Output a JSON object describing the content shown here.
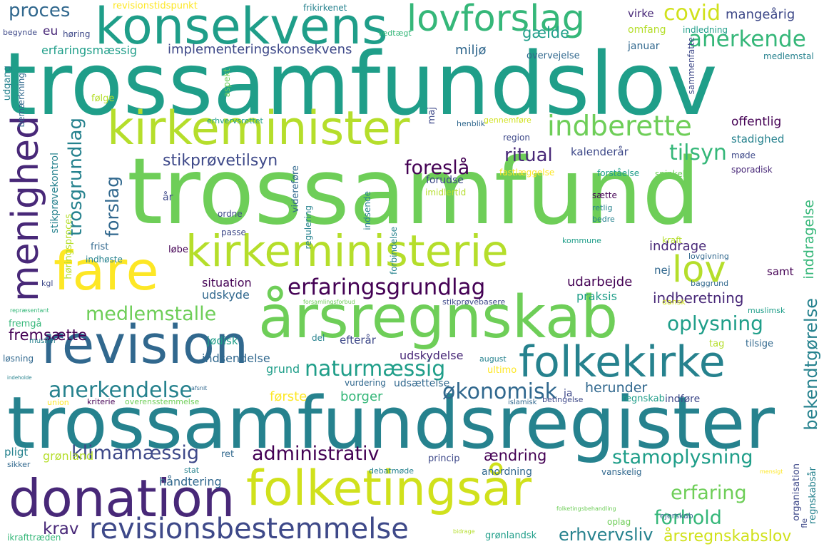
{
  "palette": [
    "#440154",
    "#482878",
    "#3e4989",
    "#31688e",
    "#26828e",
    "#1f9e89",
    "#35b779",
    "#6ece58",
    "#b5de2b",
    "#fde725"
  ],
  "words": [
    {
      "text": "trossamfundslov",
      "color": "#1f9e89"
    },
    {
      "text": "trossamfund",
      "color": "#6ece58"
    },
    {
      "text": "trossamfundsregister",
      "color": "#26828e"
    },
    {
      "text": "konsekvens",
      "color": "#1f9e89"
    },
    {
      "text": "lovforslag",
      "color": "#35b779"
    },
    {
      "text": "kirkeminister",
      "color": "#b5de2b"
    },
    {
      "text": "kirkeministerie",
      "color": "#b5de2b"
    },
    {
      "text": "fare",
      "color": "#fde725"
    },
    {
      "text": "årsregnskab",
      "color": "#6ece58"
    },
    {
      "text": "revision",
      "color": "#31688e"
    },
    {
      "text": "folkekirke",
      "color": "#26828e"
    },
    {
      "text": "folketingsår",
      "color": "#d0e11c"
    },
    {
      "text": "donation",
      "color": "#482878"
    },
    {
      "text": "revisionsbestemmelse",
      "color": "#3e4989"
    },
    {
      "text": "menighed",
      "color": "#482878"
    },
    {
      "text": "indberette",
      "color": "#6ece58"
    },
    {
      "text": "lov",
      "color": "#b5de2b"
    },
    {
      "text": "erfaringsgrundlag",
      "color": "#440154"
    },
    {
      "text": "medlemstalle",
      "color": "#6ece58"
    },
    {
      "text": "anerkendelse",
      "color": "#26828e"
    },
    {
      "text": "klimamæssig",
      "color": "#3e4989"
    },
    {
      "text": "administrativ",
      "color": "#440154"
    },
    {
      "text": "stamoplysning",
      "color": "#1f9e89"
    },
    {
      "text": "naturmæssig",
      "color": "#1f9e89"
    },
    {
      "text": "økonomisk",
      "color": "#31688e"
    },
    {
      "text": "oplysning",
      "color": "#1f9e89"
    },
    {
      "text": "erfaring",
      "color": "#6ece58"
    },
    {
      "text": "forhold",
      "color": "#35b779"
    },
    {
      "text": "erhvervsliv",
      "color": "#26828e"
    },
    {
      "text": "årsregnskabslov",
      "color": "#d0e11c"
    },
    {
      "text": "covid",
      "color": "#d0e11c"
    },
    {
      "text": "anerkende",
      "color": "#35b779"
    },
    {
      "text": "tilsyn",
      "color": "#35b779"
    },
    {
      "text": "foreslå",
      "color": "#440154"
    },
    {
      "text": "ritual",
      "color": "#482878"
    },
    {
      "text": "stikprøvetilsyn",
      "color": "#3e4989"
    },
    {
      "text": "trosgrundlag",
      "color": "#26828e"
    },
    {
      "text": "forslag",
      "color": "#31688e"
    },
    {
      "text": "proces",
      "color": "#31688e"
    },
    {
      "text": "implementeringskonsekvens",
      "color": "#3e4989"
    },
    {
      "text": "erfaringsmæssig",
      "color": "#1f9e89"
    },
    {
      "text": "gælde",
      "color": "#1f9e89"
    },
    {
      "text": "miljø",
      "color": "#31688e"
    },
    {
      "text": "mangeårig",
      "color": "#3e4989"
    },
    {
      "text": "fremsætte",
      "color": "#440154"
    },
    {
      "text": "indberetning",
      "color": "#482878"
    },
    {
      "text": "bekendtgørelse",
      "color": "#26828e"
    },
    {
      "text": "inddragelse",
      "color": "#35b779"
    },
    {
      "text": "offentlig",
      "color": "#440154"
    },
    {
      "text": "krav",
      "color": "#482878"
    },
    {
      "text": "ændring",
      "color": "#440154"
    },
    {
      "text": "herunder",
      "color": "#31688e"
    },
    {
      "text": "inddrage",
      "color": "#482878"
    },
    {
      "text": "udarbejde",
      "color": "#440154"
    },
    {
      "text": "eu",
      "color": "#482878"
    },
    {
      "text": "grønland",
      "color": "#b5de2b"
    },
    {
      "text": "håndtering",
      "color": "#31688e"
    },
    {
      "text": "første",
      "color": "#fde725"
    },
    {
      "text": "borger",
      "color": "#35b779"
    },
    {
      "text": "udskydelse",
      "color": "#482878"
    },
    {
      "text": "grund",
      "color": "#1f9e89"
    },
    {
      "text": "indsendelse",
      "color": "#31688e"
    },
    {
      "text": "jødisk",
      "color": "#1f9e89"
    },
    {
      "text": "efterår",
      "color": "#3e4989"
    },
    {
      "text": "udsættelse",
      "color": "#31688e"
    },
    {
      "text": "situation",
      "color": "#440154"
    },
    {
      "text": "udskyde",
      "color": "#31688e"
    },
    {
      "text": "praksis",
      "color": "#1f9e89"
    },
    {
      "text": "samt",
      "color": "#440154"
    },
    {
      "text": "nej",
      "color": "#31688e"
    },
    {
      "text": "kalenderår",
      "color": "#3e4989"
    },
    {
      "text": "stadighed",
      "color": "#26828e"
    },
    {
      "text": "virke",
      "color": "#482878"
    },
    {
      "text": "omfang",
      "color": "#b5de2b"
    },
    {
      "text": "januar",
      "color": "#31688e"
    },
    {
      "text": "overvejelse",
      "color": "#31688e"
    },
    {
      "text": "indledning",
      "color": "#1f9e89"
    },
    {
      "text": "medlemstal",
      "color": "#26828e"
    },
    {
      "text": "sammenfatte",
      "color": "#3e4989"
    },
    {
      "text": "frikirkenet",
      "color": "#26828e"
    },
    {
      "text": "revisionstidspunkt",
      "color": "#fde725"
    },
    {
      "text": "vedtægt",
      "color": "#35b779"
    },
    {
      "text": "begynde",
      "color": "#3e4989"
    },
    {
      "text": "høring",
      "color": "#3e4989"
    },
    {
      "text": "udgang",
      "color": "#26828e"
    },
    {
      "text": "bemærkning",
      "color": "#31688e"
    },
    {
      "text": "aspekt",
      "color": "#6ece58"
    },
    {
      "text": "følge",
      "color": "#b5de2b"
    },
    {
      "text": "erhvervsrettet",
      "color": "#1f9e89"
    },
    {
      "text": "maj",
      "color": "#3e4989"
    },
    {
      "text": "henblik",
      "color": "#31688e"
    },
    {
      "text": "gennemføre",
      "color": "#d0e11c"
    },
    {
      "text": "region",
      "color": "#3e4989"
    },
    {
      "text": "forudse",
      "color": "#3e4989"
    },
    {
      "text": "imidlertid",
      "color": "#b5de2b"
    },
    {
      "text": "fastlæggelse",
      "color": "#fde725"
    },
    {
      "text": "forståelse",
      "color": "#1f9e89"
    },
    {
      "text": "spinkel",
      "color": "#6ece58"
    },
    {
      "text": "sporadisk",
      "color": "#482878"
    },
    {
      "text": "møde",
      "color": "#3e4989"
    },
    {
      "text": "stikprøvekontrol",
      "color": "#26828e"
    },
    {
      "text": "høringsproces",
      "color": "#b5de2b"
    },
    {
      "text": "år",
      "color": "#3e4989"
    },
    {
      "text": "ordne",
      "color": "#3e4989"
    },
    {
      "text": "passe",
      "color": "#3e4989"
    },
    {
      "text": "videreføre",
      "color": "#31688e"
    },
    {
      "text": "regulering",
      "color": "#26828e"
    },
    {
      "text": "indsende",
      "color": "#26828e"
    },
    {
      "text": "sætte",
      "color": "#440154"
    },
    {
      "text": "retlig",
      "color": "#26828e"
    },
    {
      "text": "bedre",
      "color": "#26828e"
    },
    {
      "text": "frist",
      "color": "#31688e"
    },
    {
      "text": "løbe",
      "color": "#440154"
    },
    {
      "text": "indhøste",
      "color": "#26828e"
    },
    {
      "text": "kommune",
      "color": "#1f9e89"
    },
    {
      "text": "kraft",
      "color": "#b5de2b"
    },
    {
      "text": "lovgivning",
      "color": "#31688e"
    },
    {
      "text": "baggrund",
      "color": "#31688e"
    },
    {
      "text": "dansk",
      "color": "#d0e11c"
    },
    {
      "text": "stikprøvebasere",
      "color": "#3e4989"
    },
    {
      "text": "muslimsk",
      "color": "#1f9e89"
    },
    {
      "text": "kgl",
      "color": "#3e4989"
    },
    {
      "text": "fremgå",
      "color": "#35b779"
    },
    {
      "text": "muslim",
      "color": "#26828e"
    },
    {
      "text": "løsning",
      "color": "#31688e"
    },
    {
      "text": "del",
      "color": "#26828e"
    },
    {
      "text": "tag",
      "color": "#b5de2b"
    },
    {
      "text": "tilsige",
      "color": "#31688e"
    },
    {
      "text": "august",
      "color": "#26828e"
    },
    {
      "text": "ultimo",
      "color": "#fde725"
    },
    {
      "text": "vurdering",
      "color": "#31688e"
    },
    {
      "text": "kriterie",
      "color": "#440154"
    },
    {
      "text": "overensstemmelse",
      "color": "#6ece58"
    },
    {
      "text": "union",
      "color": "#fde725"
    },
    {
      "text": "betingelse",
      "color": "#3e4989"
    },
    {
      "text": "islamisk",
      "color": "#31688e"
    },
    {
      "text": "ja",
      "color": "#3e4989"
    },
    {
      "text": "regnskab",
      "color": "#1f9e89"
    },
    {
      "text": "indføre",
      "color": "#3e4989"
    },
    {
      "text": "pligt",
      "color": "#26828e"
    },
    {
      "text": "sikker",
      "color": "#31688e"
    },
    {
      "text": "ret",
      "color": "#31688e"
    },
    {
      "text": "princip",
      "color": "#3e4989"
    },
    {
      "text": "debatmøde",
      "color": "#26828e"
    },
    {
      "text": "stat",
      "color": "#26828e"
    },
    {
      "text": "anordning",
      "color": "#31688e"
    },
    {
      "text": "vanskelig",
      "color": "#31688e"
    },
    {
      "text": "grønlandsk",
      "color": "#1f9e89"
    },
    {
      "text": "oplag",
      "color": "#6ece58"
    },
    {
      "text": "ejerskab",
      "color": "#31688e"
    },
    {
      "text": "regnskabsår",
      "color": "#26828e"
    },
    {
      "text": "organisation",
      "color": "#3e4989"
    },
    {
      "text": "fle",
      "color": "#3e4989"
    },
    {
      "text": "ikrafttræden",
      "color": "#35b779"
    },
    {
      "text": "bidrage",
      "color": "#b5de2b"
    },
    {
      "text": "folketingsbehandling",
      "color": "#6ece58"
    },
    {
      "text": "mensigt",
      "color": "#fde725"
    },
    {
      "text": "repræsentant",
      "color": "#35b779"
    },
    {
      "text": "forsamlingsforbud",
      "color": "#6ece58"
    },
    {
      "text": "forbindelse",
      "color": "#26828e"
    },
    {
      "text": "afsnit",
      "color": "#31688e"
    },
    {
      "text": "indeholde",
      "color": "#26828e"
    }
  ]
}
